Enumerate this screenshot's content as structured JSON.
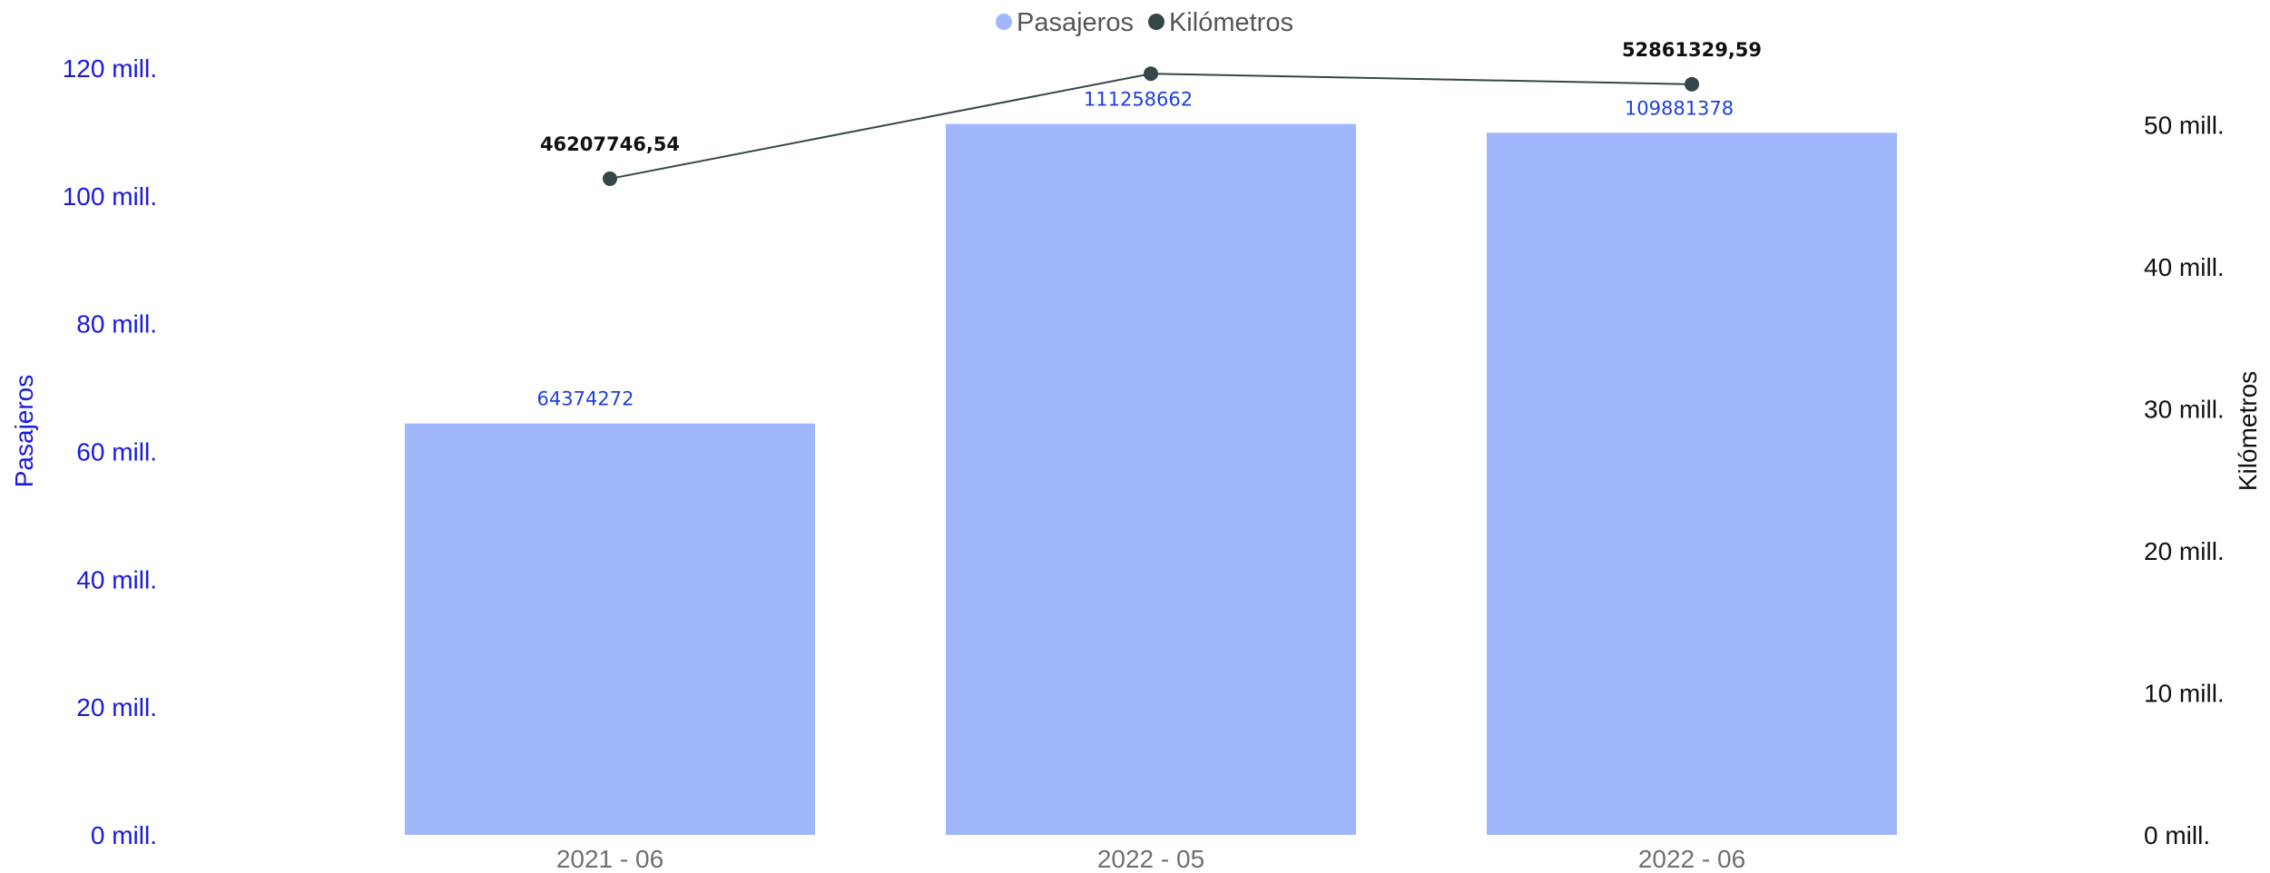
{
  "chart_data": {
    "type": "bar",
    "categories": [
      "2021 - 06",
      "2022 - 05",
      "2022 - 06"
    ],
    "series": [
      {
        "name": "Pasajeros",
        "type": "bar",
        "axis": "left",
        "values": [
          64374272,
          111258662,
          109881378
        ],
        "labels": [
          "64374272",
          "111258662",
          "109881378"
        ]
      },
      {
        "name": "Kilómetros",
        "type": "line",
        "axis": "right",
        "values": [
          46207746.54,
          53600000,
          52861329.59
        ],
        "labels": [
          "46207746,54",
          "",
          "52861329,59"
        ]
      }
    ],
    "ylabel": "Pasajeros",
    "y2label": "Kilómetros",
    "ylim": [
      0,
      120000000
    ],
    "y2lim": [
      0,
      54000000
    ],
    "yticks": [
      {
        "value": 0,
        "label": "0 mill."
      },
      {
        "value": 20000000,
        "label": "20 mill."
      },
      {
        "value": 40000000,
        "label": "40 mill."
      },
      {
        "value": 60000000,
        "label": "60 mill."
      },
      {
        "value": 80000000,
        "label": "80 mill."
      },
      {
        "value": 100000000,
        "label": "100 mill."
      },
      {
        "value": 120000000,
        "label": "120 mill."
      }
    ],
    "y2ticks": [
      {
        "value": 0,
        "label": "0 mill."
      },
      {
        "value": 10000000,
        "label": "10 mill."
      },
      {
        "value": 20000000,
        "label": "20 mill."
      },
      {
        "value": 30000000,
        "label": "30 mill."
      },
      {
        "value": 40000000,
        "label": "40 mill."
      },
      {
        "value": 50000000,
        "label": "50 mill."
      }
    ],
    "legend": {
      "position": "top-center",
      "items": [
        {
          "name": "Pasajeros",
          "color": "#a0b6fd"
        },
        {
          "name": "Kilómetros",
          "color": "#374649"
        }
      ]
    },
    "grid": false,
    "colors": {
      "bar": "#a0b6fd",
      "line": "#374649",
      "left_axis_text": "#1a1adc",
      "bar_label": "#1f3fe0"
    }
  }
}
